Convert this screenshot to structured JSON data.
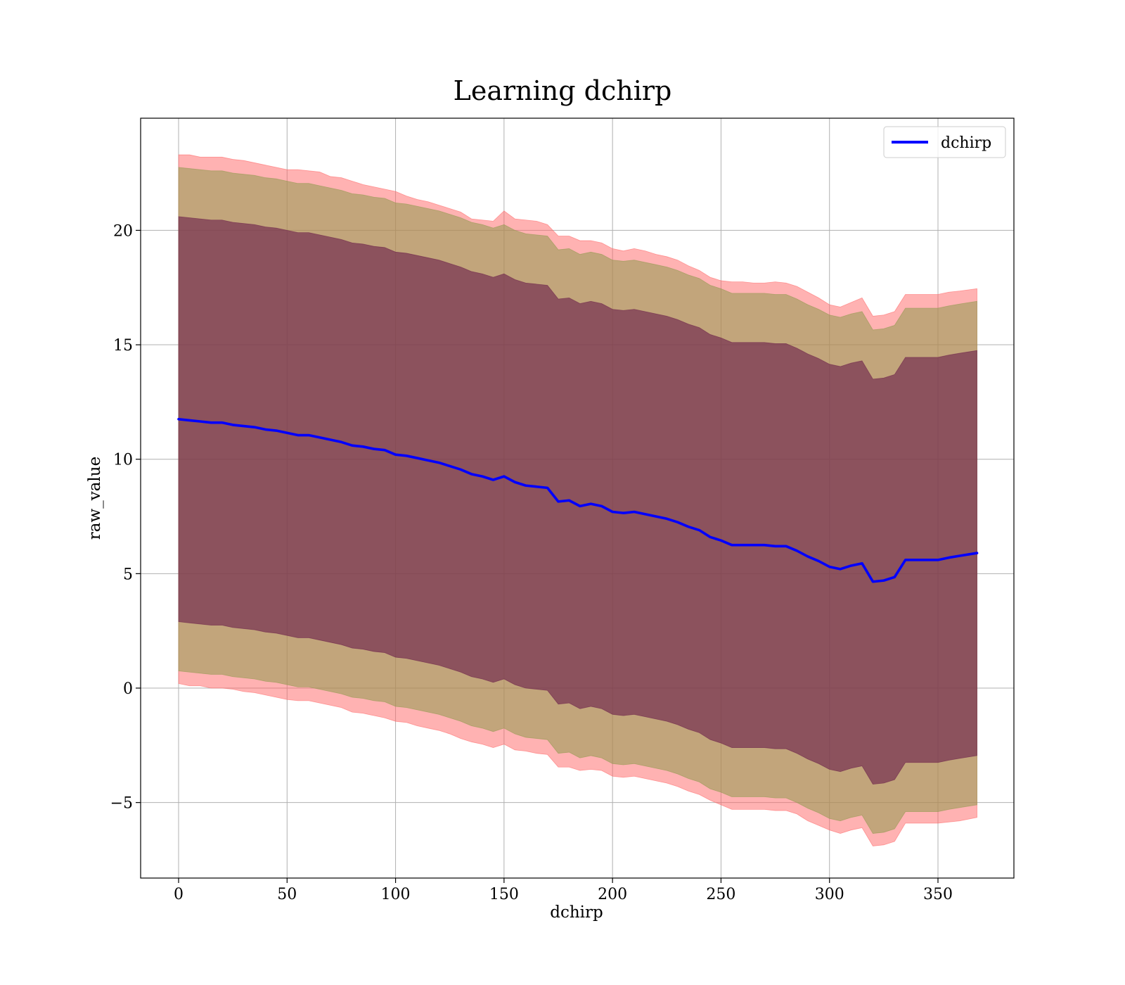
{
  "chart_data": {
    "type": "area",
    "title": "Learning dchirp",
    "xlabel": "dchirp",
    "ylabel": "raw_value",
    "xlim": [
      -17.5,
      385
    ],
    "ylim": [
      -8.3,
      24.9
    ],
    "xticks": [
      0,
      50,
      100,
      150,
      200,
      250,
      300,
      350
    ],
    "yticks": [
      -5,
      0,
      5,
      10,
      15,
      20
    ],
    "xtick_labels": [
      "0",
      "50",
      "100",
      "150",
      "200",
      "250",
      "300",
      "350"
    ],
    "ytick_labels": [
      "−5",
      "0",
      "5",
      "10",
      "15",
      "20"
    ],
    "grid": true,
    "legend": {
      "placement": "top-right",
      "entries": [
        "dchirp"
      ]
    },
    "colors": {
      "line": "#0000ff",
      "band_outer": "#ff6666",
      "band_middle": "#8f9a4f",
      "band_inner": "#6a1f4a",
      "grid": "#b0b0b0"
    },
    "x": [
      0,
      5,
      10,
      15,
      20,
      25,
      30,
      35,
      40,
      45,
      50,
      55,
      60,
      65,
      70,
      75,
      80,
      85,
      90,
      95,
      100,
      105,
      110,
      115,
      120,
      125,
      130,
      135,
      140,
      145,
      150,
      155,
      160,
      165,
      170,
      175,
      180,
      185,
      190,
      195,
      200,
      205,
      210,
      215,
      220,
      225,
      230,
      235,
      240,
      245,
      250,
      255,
      260,
      265,
      270,
      275,
      280,
      285,
      290,
      295,
      300,
      305,
      310,
      315,
      320,
      325,
      330,
      335,
      340,
      345,
      350,
      355,
      360,
      368
    ],
    "series": [
      {
        "name": "dchirp",
        "values": [
          11.75,
          11.7,
          11.65,
          11.6,
          11.6,
          11.5,
          11.45,
          11.4,
          11.3,
          11.25,
          11.15,
          11.05,
          11.05,
          10.95,
          10.85,
          10.75,
          10.6,
          10.55,
          10.45,
          10.4,
          10.2,
          10.15,
          10.05,
          9.95,
          9.85,
          9.7,
          9.55,
          9.35,
          9.25,
          9.1,
          9.25,
          9.0,
          8.85,
          8.8,
          8.75,
          8.15,
          8.2,
          7.95,
          8.05,
          7.95,
          7.7,
          7.65,
          7.7,
          7.6,
          7.5,
          7.4,
          7.25,
          7.05,
          6.9,
          6.6,
          6.45,
          6.25,
          6.25,
          6.25,
          6.25,
          6.2,
          6.2,
          6.0,
          5.75,
          5.55,
          5.3,
          5.2,
          5.35,
          5.45,
          4.65,
          4.7,
          4.85,
          5.6,
          5.6,
          5.6,
          5.6,
          5.7,
          5.78,
          5.9
        ]
      }
    ],
    "bands": [
      {
        "level": "outer",
        "upper": [
          23.3,
          23.3,
          23.2,
          23.2,
          23.2,
          23.1,
          23.05,
          22.95,
          22.85,
          22.75,
          22.65,
          22.65,
          22.6,
          22.55,
          22.35,
          22.3,
          22.15,
          22.0,
          21.9,
          21.8,
          21.7,
          21.5,
          21.35,
          21.25,
          21.1,
          20.95,
          20.8,
          20.5,
          20.45,
          20.4,
          20.85,
          20.5,
          20.45,
          20.4,
          20.25,
          19.75,
          19.75,
          19.55,
          19.55,
          19.45,
          19.2,
          19.1,
          19.2,
          19.1,
          18.95,
          18.85,
          18.7,
          18.45,
          18.25,
          17.95,
          17.8,
          17.75,
          17.75,
          17.7,
          17.7,
          17.75,
          17.7,
          17.55,
          17.3,
          17.05,
          16.75,
          16.65,
          16.85,
          17.05,
          16.25,
          16.3,
          16.45,
          17.2,
          17.2,
          17.2,
          17.2,
          17.3,
          17.35,
          17.45
        ],
        "lower": [
          0.2,
          0.1,
          0.1,
          0.0,
          0.0,
          -0.05,
          -0.15,
          -0.2,
          -0.3,
          -0.4,
          -0.5,
          -0.55,
          -0.55,
          -0.65,
          -0.75,
          -0.85,
          -1.05,
          -1.1,
          -1.2,
          -1.3,
          -1.45,
          -1.5,
          -1.65,
          -1.75,
          -1.85,
          -2.0,
          -2.2,
          -2.35,
          -2.45,
          -2.6,
          -2.45,
          -2.7,
          -2.75,
          -2.85,
          -2.9,
          -3.45,
          -3.45,
          -3.6,
          -3.55,
          -3.6,
          -3.85,
          -3.9,
          -3.85,
          -3.95,
          -4.05,
          -4.15,
          -4.3,
          -4.5,
          -4.65,
          -4.9,
          -5.1,
          -5.3,
          -5.3,
          -5.3,
          -5.3,
          -5.35,
          -5.35,
          -5.5,
          -5.8,
          -6.0,
          -6.2,
          -6.35,
          -6.2,
          -6.1,
          -6.9,
          -6.85,
          -6.7,
          -5.9,
          -5.9,
          -5.9,
          -5.9,
          -5.85,
          -5.8,
          -5.65
        ]
      },
      {
        "level": "middle",
        "upper": [
          22.75,
          22.7,
          22.65,
          22.6,
          22.6,
          22.5,
          22.45,
          22.4,
          22.3,
          22.25,
          22.15,
          22.05,
          22.05,
          21.95,
          21.85,
          21.75,
          21.6,
          21.55,
          21.45,
          21.4,
          21.2,
          21.15,
          21.05,
          20.95,
          20.85,
          20.7,
          20.55,
          20.35,
          20.25,
          20.1,
          20.25,
          20.0,
          19.85,
          19.8,
          19.75,
          19.15,
          19.2,
          18.95,
          19.05,
          18.95,
          18.7,
          18.65,
          18.7,
          18.6,
          18.5,
          18.4,
          18.25,
          18.05,
          17.9,
          17.6,
          17.45,
          17.25,
          17.25,
          17.25,
          17.25,
          17.2,
          17.2,
          17.0,
          16.75,
          16.55,
          16.3,
          16.2,
          16.35,
          16.45,
          15.65,
          15.7,
          15.85,
          16.6,
          16.6,
          16.6,
          16.6,
          16.7,
          16.78,
          16.9
        ],
        "lower": [
          0.75,
          0.7,
          0.65,
          0.6,
          0.6,
          0.5,
          0.45,
          0.4,
          0.3,
          0.25,
          0.15,
          0.05,
          0.05,
          -0.05,
          -0.15,
          -0.25,
          -0.4,
          -0.45,
          -0.55,
          -0.6,
          -0.8,
          -0.85,
          -0.95,
          -1.05,
          -1.15,
          -1.3,
          -1.45,
          -1.65,
          -1.75,
          -1.9,
          -1.75,
          -2.0,
          -2.15,
          -2.2,
          -2.25,
          -2.85,
          -2.8,
          -3.05,
          -2.95,
          -3.05,
          -3.3,
          -3.35,
          -3.3,
          -3.4,
          -3.5,
          -3.6,
          -3.75,
          -3.95,
          -4.1,
          -4.4,
          -4.55,
          -4.75,
          -4.75,
          -4.75,
          -4.75,
          -4.8,
          -4.8,
          -5.0,
          -5.25,
          -5.45,
          -5.7,
          -5.8,
          -5.65,
          -5.55,
          -6.35,
          -6.3,
          -6.15,
          -5.4,
          -5.4,
          -5.4,
          -5.4,
          -5.3,
          -5.22,
          -5.1
        ]
      },
      {
        "level": "inner",
        "upper": [
          20.6,
          20.55,
          20.5,
          20.45,
          20.45,
          20.35,
          20.3,
          20.25,
          20.15,
          20.1,
          20.0,
          19.9,
          19.9,
          19.8,
          19.7,
          19.6,
          19.45,
          19.4,
          19.3,
          19.25,
          19.05,
          19.0,
          18.9,
          18.8,
          18.7,
          18.55,
          18.4,
          18.2,
          18.1,
          17.95,
          18.1,
          17.85,
          17.7,
          17.65,
          17.6,
          17.0,
          17.05,
          16.8,
          16.9,
          16.8,
          16.55,
          16.5,
          16.55,
          16.45,
          16.35,
          16.25,
          16.1,
          15.9,
          15.75,
          15.45,
          15.3,
          15.1,
          15.1,
          15.1,
          15.1,
          15.05,
          15.05,
          14.85,
          14.6,
          14.4,
          14.15,
          14.05,
          14.2,
          14.3,
          13.5,
          13.55,
          13.7,
          14.45,
          14.45,
          14.45,
          14.45,
          14.55,
          14.63,
          14.75
        ],
        "lower": [
          2.9,
          2.85,
          2.8,
          2.75,
          2.75,
          2.65,
          2.6,
          2.55,
          2.45,
          2.4,
          2.3,
          2.2,
          2.2,
          2.1,
          2.0,
          1.9,
          1.75,
          1.7,
          1.6,
          1.55,
          1.35,
          1.3,
          1.2,
          1.1,
          1.0,
          0.85,
          0.7,
          0.5,
          0.4,
          0.25,
          0.4,
          0.15,
          0.0,
          -0.05,
          -0.1,
          -0.7,
          -0.65,
          -0.9,
          -0.8,
          -0.9,
          -1.15,
          -1.2,
          -1.15,
          -1.25,
          -1.35,
          -1.45,
          -1.6,
          -1.8,
          -1.95,
          -2.25,
          -2.4,
          -2.6,
          -2.6,
          -2.6,
          -2.6,
          -2.65,
          -2.65,
          -2.85,
          -3.1,
          -3.3,
          -3.55,
          -3.65,
          -3.5,
          -3.4,
          -4.2,
          -4.15,
          -4.0,
          -3.25,
          -3.25,
          -3.25,
          -3.25,
          -3.15,
          -3.07,
          -2.95
        ]
      }
    ]
  }
}
